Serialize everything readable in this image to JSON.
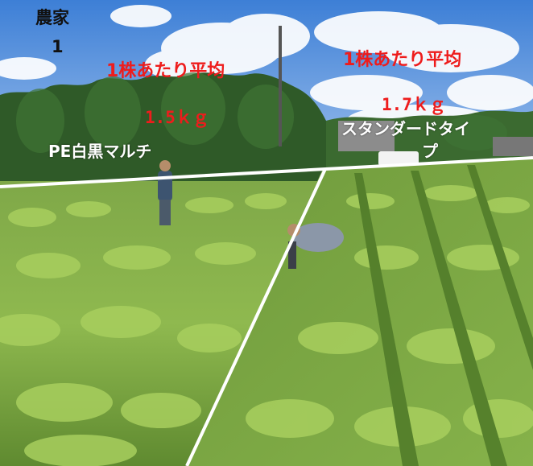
{
  "labels": {
    "farmer_title_line1": "農家",
    "farmer_title_line2": "1",
    "left_avg_heading": "1株あたり平均",
    "left_avg_value": "1.5ｋｇ",
    "left_mulch_name": "PE白黒マルチ",
    "right_avg_heading": "1株あたり平均",
    "right_avg_value": "1.7ｋｇ",
    "right_type_line1": "スタンダードタイ",
    "right_type_line2": "プ"
  },
  "colors": {
    "label_black": "#111111",
    "label_red": "#ee1c1c",
    "label_white": "#ffffff",
    "divider": "#ffffff"
  }
}
